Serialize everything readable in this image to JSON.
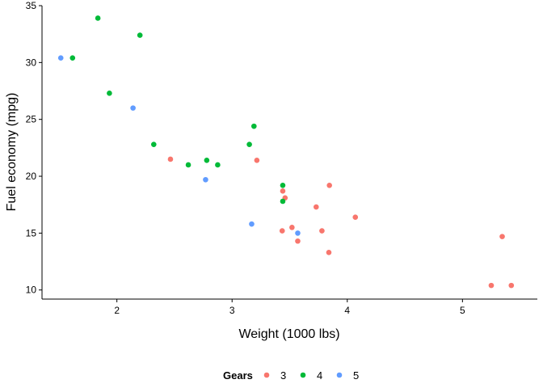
{
  "chart_data": {
    "type": "scatter",
    "title": "",
    "xlabel": "Weight (1000 lbs)",
    "ylabel": "Fuel economy (mpg)",
    "xlim": [
      1.35,
      5.65
    ],
    "ylim": [
      9.2,
      35.0
    ],
    "x_ticks": [
      2,
      3,
      4,
      5
    ],
    "y_ticks": [
      10,
      15,
      20,
      25,
      30,
      35
    ],
    "grid": false,
    "legend": {
      "title": "Gears",
      "position": "bottom"
    },
    "series": [
      {
        "name": "3",
        "color": "#F8766D",
        "points": [
          {
            "x": 2.465,
            "y": 21.5
          },
          {
            "x": 3.215,
            "y": 21.4
          },
          {
            "x": 3.44,
            "y": 18.7
          },
          {
            "x": 3.46,
            "y": 18.1
          },
          {
            "x": 3.57,
            "y": 14.3
          },
          {
            "x": 4.07,
            "y": 16.4
          },
          {
            "x": 3.73,
            "y": 17.3
          },
          {
            "x": 3.78,
            "y": 15.2
          },
          {
            "x": 5.25,
            "y": 10.4
          },
          {
            "x": 5.424,
            "y": 10.4
          },
          {
            "x": 5.345,
            "y": 14.7
          },
          {
            "x": 3.52,
            "y": 15.5
          },
          {
            "x": 3.435,
            "y": 15.2
          },
          {
            "x": 3.84,
            "y": 13.3
          },
          {
            "x": 3.845,
            "y": 19.2
          }
        ]
      },
      {
        "name": "4",
        "color": "#00BA38",
        "points": [
          {
            "x": 2.62,
            "y": 21.0
          },
          {
            "x": 2.875,
            "y": 21.0
          },
          {
            "x": 2.32,
            "y": 22.8
          },
          {
            "x": 3.19,
            "y": 24.4
          },
          {
            "x": 3.15,
            "y": 22.8
          },
          {
            "x": 3.44,
            "y": 19.2
          },
          {
            "x": 3.44,
            "y": 17.8
          },
          {
            "x": 2.2,
            "y": 32.4
          },
          {
            "x": 1.615,
            "y": 30.4
          },
          {
            "x": 1.835,
            "y": 33.9
          },
          {
            "x": 1.935,
            "y": 27.3
          },
          {
            "x": 2.78,
            "y": 21.4
          }
        ]
      },
      {
        "name": "5",
        "color": "#619CFF",
        "points": [
          {
            "x": 2.14,
            "y": 26.0
          },
          {
            "x": 1.513,
            "y": 30.4
          },
          {
            "x": 3.17,
            "y": 15.8
          },
          {
            "x": 2.77,
            "y": 19.7
          },
          {
            "x": 3.57,
            "y": 15.0
          }
        ]
      }
    ]
  }
}
